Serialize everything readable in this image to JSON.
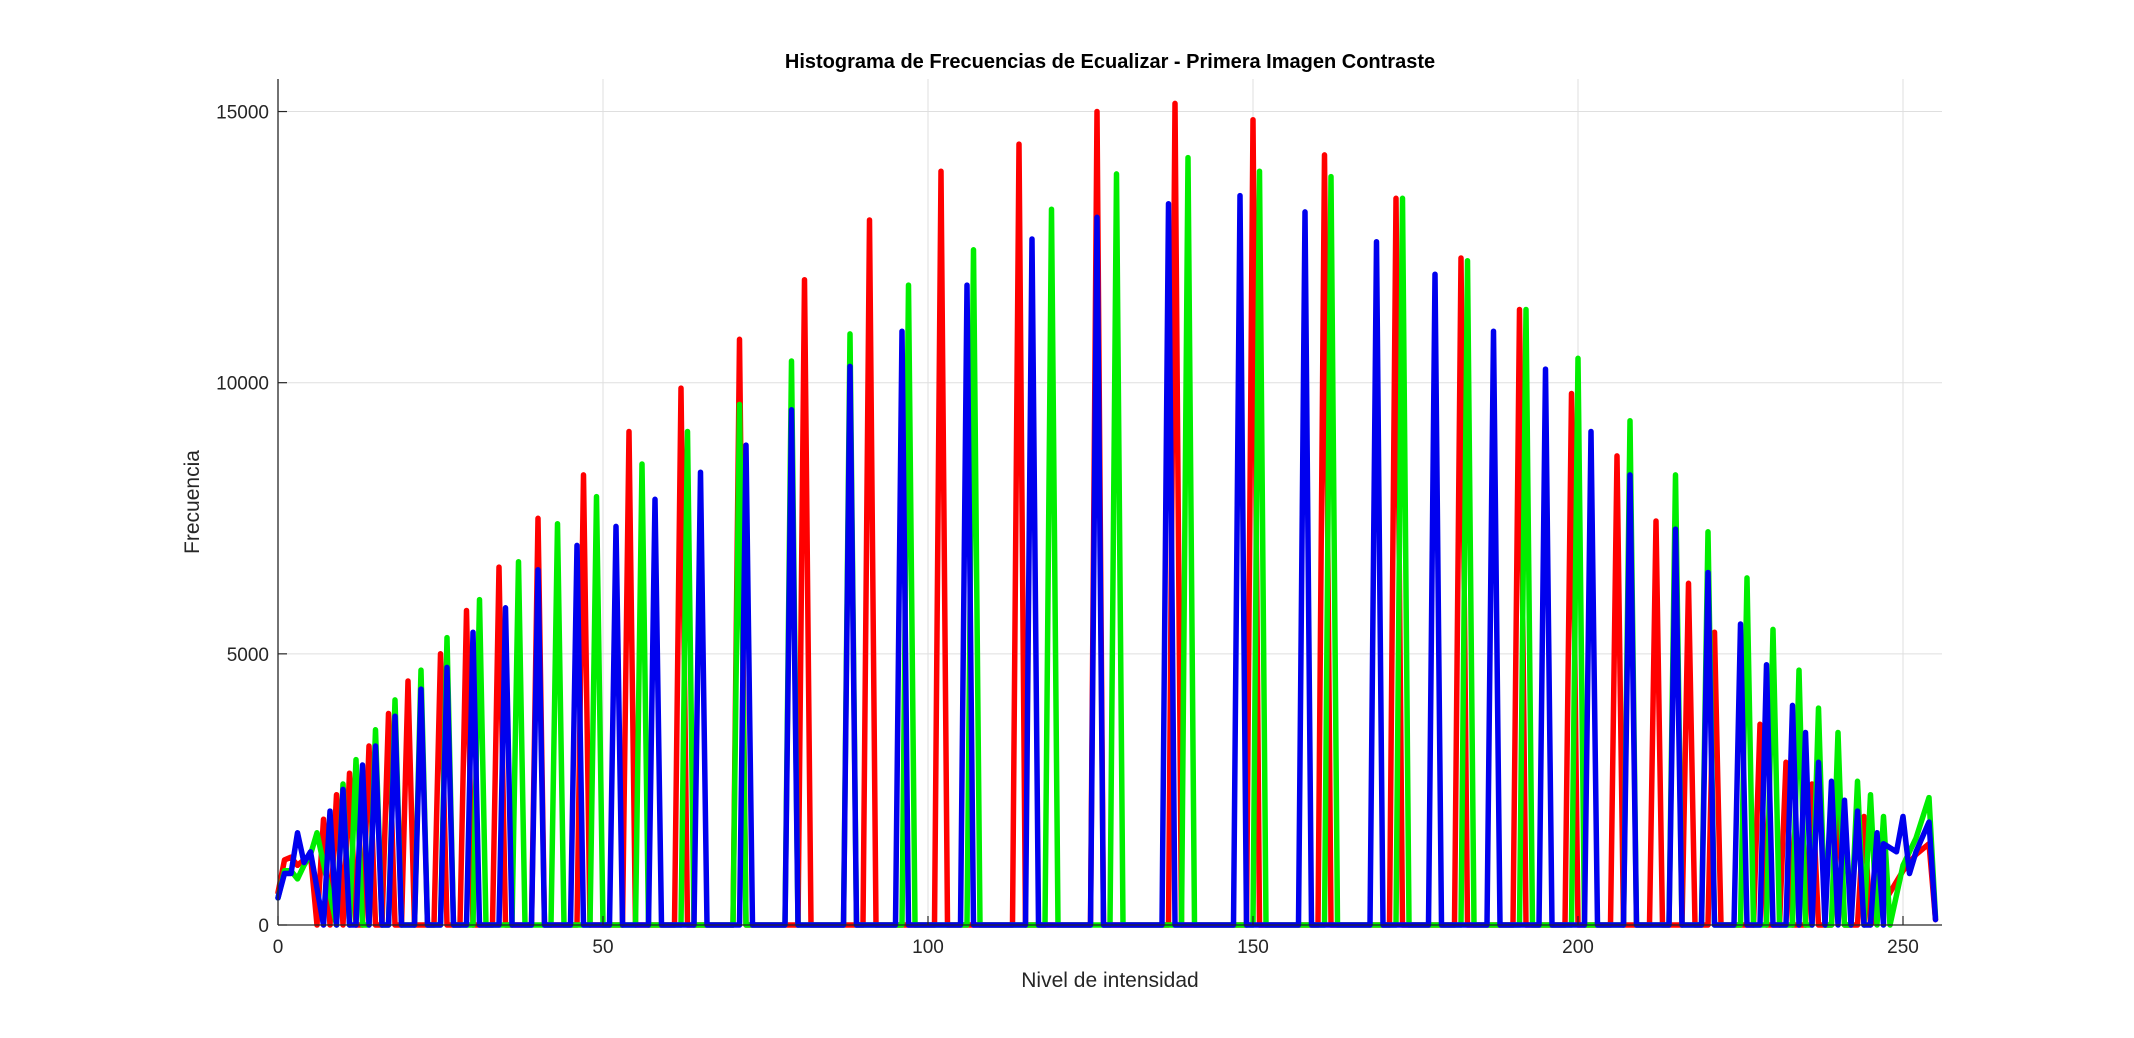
{
  "chart_data": {
    "type": "line",
    "title": "Histograma de Frecuencias de Ecualizar - Primera Imagen Contraste",
    "xlabel": "Nivel de intensidad",
    "ylabel": "Frecuencia",
    "xlim": [
      0,
      256
    ],
    "ylim": [
      0,
      15600
    ],
    "xticks": [
      0,
      50,
      100,
      150,
      200,
      250
    ],
    "yticks": [
      0,
      5000,
      10000,
      15000
    ],
    "xtick_labels": [
      "0",
      "50",
      "100",
      "150",
      "200",
      "250"
    ],
    "ytick_labels": [
      "0",
      "5000",
      "10000",
      "15000"
    ],
    "grid": true,
    "legend": "none",
    "series": [
      {
        "color": "#ff0000",
        "head": [
          [
            0,
            600
          ],
          [
            1,
            1200
          ],
          [
            2,
            1250
          ],
          [
            3,
            1100
          ],
          [
            4,
            1200
          ],
          [
            5,
            1300
          ]
        ],
        "spikes": [
          [
            7,
            1950
          ],
          [
            9,
            2400
          ],
          [
            11,
            2800
          ],
          [
            14,
            3300
          ],
          [
            17,
            3900
          ],
          [
            20,
            4500
          ],
          [
            25,
            5000
          ],
          [
            29,
            5800
          ],
          [
            34,
            6600
          ],
          [
            40,
            7500
          ],
          [
            47,
            8300
          ],
          [
            54,
            9100
          ],
          [
            62,
            9900
          ],
          [
            71,
            10800
          ],
          [
            81,
            11900
          ],
          [
            91,
            13000
          ],
          [
            102,
            13900
          ],
          [
            114,
            14400
          ],
          [
            126,
            15000
          ],
          [
            138,
            15150
          ],
          [
            150,
            14850
          ],
          [
            161,
            14200
          ],
          [
            172,
            13400
          ],
          [
            182,
            12300
          ],
          [
            191,
            11350
          ],
          [
            199,
            9800
          ],
          [
            206,
            8650
          ],
          [
            212,
            7450
          ],
          [
            217,
            6300
          ],
          [
            221,
            5400
          ],
          [
            228,
            3700
          ],
          [
            232,
            3000
          ],
          [
            236,
            2600
          ],
          [
            240,
            2150
          ],
          [
            244,
            2000
          ]
        ],
        "tail": [
          [
            250,
            1000
          ],
          [
            252,
            1300
          ],
          [
            254,
            1500
          ],
          [
            255,
            100
          ]
        ]
      },
      {
        "color": "#00ee00",
        "head": [
          [
            0,
            500
          ],
          [
            1,
            1000
          ],
          [
            2,
            1000
          ],
          [
            3,
            850
          ],
          [
            4,
            1100
          ],
          [
            5,
            1300
          ],
          [
            6,
            1700
          ]
        ],
        "spikes": [
          [
            10,
            2600
          ],
          [
            12,
            3050
          ],
          [
            15,
            3600
          ],
          [
            18,
            4150
          ],
          [
            22,
            4700
          ],
          [
            26,
            5300
          ],
          [
            31,
            6000
          ],
          [
            37,
            6700
          ],
          [
            43,
            7400
          ],
          [
            49,
            7900
          ],
          [
            56,
            8500
          ],
          [
            63,
            9100
          ],
          [
            71,
            9600
          ],
          [
            79,
            10400
          ],
          [
            88,
            10900
          ],
          [
            97,
            11800
          ],
          [
            107,
            12450
          ],
          [
            119,
            13200
          ],
          [
            129,
            13850
          ],
          [
            140,
            14150
          ],
          [
            151,
            13900
          ],
          [
            162,
            13800
          ],
          [
            173,
            13400
          ],
          [
            183,
            12250
          ],
          [
            192,
            11350
          ],
          [
            200,
            10450
          ],
          [
            208,
            9300
          ],
          [
            215,
            8300
          ],
          [
            220,
            7250
          ],
          [
            226,
            6400
          ],
          [
            230,
            5450
          ],
          [
            234,
            4700
          ],
          [
            237,
            4000
          ],
          [
            240,
            3550
          ],
          [
            243,
            2650
          ],
          [
            245,
            2400
          ],
          [
            247,
            2000
          ]
        ],
        "tail": [
          [
            250,
            1100
          ],
          [
            252,
            1600
          ],
          [
            254,
            2350
          ],
          [
            255,
            150
          ]
        ]
      },
      {
        "color": "#0000ee",
        "head": [
          [
            0,
            500
          ],
          [
            1,
            950
          ],
          [
            2,
            950
          ],
          [
            3,
            1700
          ],
          [
            4,
            1150
          ],
          [
            5,
            1350
          ]
        ],
        "spikes": [
          [
            8,
            2100
          ],
          [
            10,
            2500
          ],
          [
            13,
            2950
          ],
          [
            15,
            3300
          ],
          [
            18,
            3850
          ],
          [
            22,
            4350
          ],
          [
            26,
            4750
          ],
          [
            30,
            5400
          ],
          [
            35,
            5850
          ],
          [
            40,
            6550
          ],
          [
            46,
            7000
          ],
          [
            52,
            7350
          ],
          [
            58,
            7850
          ],
          [
            65,
            8350
          ],
          [
            72,
            8850
          ],
          [
            79,
            9500
          ],
          [
            88,
            10300
          ],
          [
            96,
            10950
          ],
          [
            106,
            11800
          ],
          [
            116,
            12650
          ],
          [
            126,
            13050
          ],
          [
            137,
            13300
          ],
          [
            148,
            13450
          ],
          [
            158,
            13150
          ],
          [
            169,
            12600
          ],
          [
            178,
            12000
          ],
          [
            187,
            10950
          ],
          [
            195,
            10250
          ],
          [
            202,
            9100
          ],
          [
            208,
            8300
          ],
          [
            215,
            7300
          ],
          [
            220,
            6500
          ],
          [
            225,
            5550
          ],
          [
            229,
            4800
          ],
          [
            233,
            4050
          ],
          [
            235,
            3550
          ],
          [
            237,
            3000
          ],
          [
            239,
            2650
          ],
          [
            241,
            2300
          ],
          [
            243,
            2100
          ],
          [
            246,
            1700
          ]
        ],
        "tail": [
          [
            247,
            1500
          ],
          [
            249,
            1350
          ],
          [
            250,
            2000
          ],
          [
            251,
            950
          ],
          [
            252,
            1350
          ],
          [
            254,
            1900
          ],
          [
            255,
            100
          ]
        ]
      }
    ]
  }
}
